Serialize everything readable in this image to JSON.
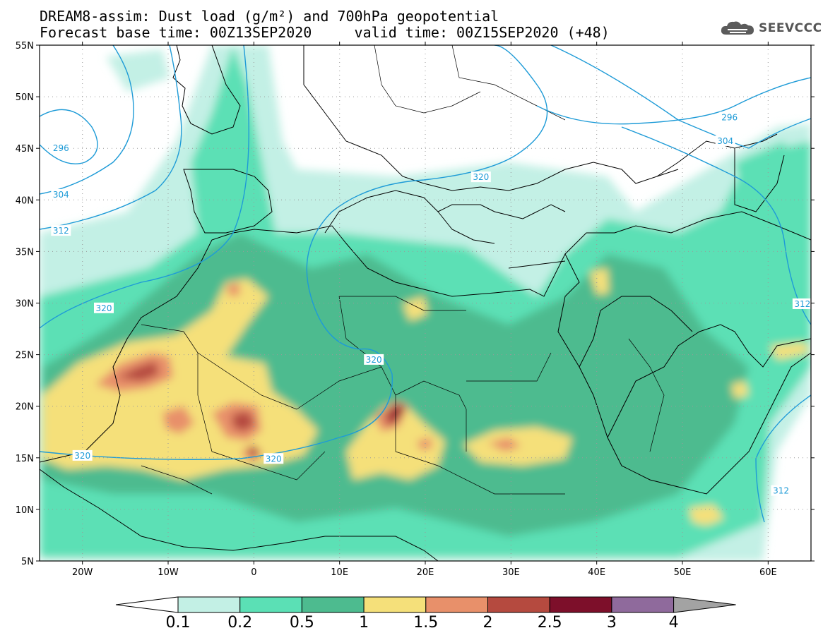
{
  "title": "DREAM8-assim: Dust load (g/m²) and 700hPa geopotential",
  "subtitle_left": "Forecast base time: 00Z13SEP2020",
  "subtitle_right": "valid time: 00Z15SEP2020 (+48)",
  "logo_text": "SEEVCCC",
  "logo_icon": "cloud-icon",
  "map": {
    "lon_range": [
      -25,
      65
    ],
    "lat_range": [
      5,
      55
    ],
    "lat_ticks": [
      "55N",
      "50N",
      "45N",
      "40N",
      "35N",
      "30N",
      "25N",
      "20N",
      "15N",
      "10N",
      "5N"
    ],
    "lon_ticks": [
      "20W",
      "10W",
      "0",
      "10E",
      "20E",
      "30E",
      "40E",
      "50E",
      "60E"
    ],
    "grid": "dotted",
    "contour_color": "#1e9bd7",
    "contour_labels": [
      {
        "text": "296",
        "lon": -22.5,
        "lat": 45.0
      },
      {
        "text": "304",
        "lon": -22.5,
        "lat": 40.5
      },
      {
        "text": "312",
        "lon": -22.5,
        "lat": 37.0
      },
      {
        "text": "320",
        "lon": -17.5,
        "lat": 29.5
      },
      {
        "text": "320",
        "lon": -20.0,
        "lat": 15.2
      },
      {
        "text": "320",
        "lon": 2.3,
        "lat": 14.9
      },
      {
        "text": "320",
        "lon": 14.0,
        "lat": 24.5
      },
      {
        "text": "320",
        "lon": 26.5,
        "lat": 42.2
      },
      {
        "text": "296",
        "lon": 55.5,
        "lat": 48.0
      },
      {
        "text": "304",
        "lon": 55.0,
        "lat": 45.7
      },
      {
        "text": "312",
        "lon": 64.0,
        "lat": 29.9
      },
      {
        "text": "312",
        "lon": 61.5,
        "lat": 11.8
      }
    ]
  },
  "colorbar": {
    "labels": [
      "0.1",
      "0.2",
      "0.5",
      "1",
      "1.5",
      "2",
      "2.5",
      "3",
      "4"
    ],
    "colors": [
      "#c3f0e5",
      "#5be0b5",
      "#4dbb8f",
      "#f5e07a",
      "#e8906a",
      "#b54a3f",
      "#7d0f2a",
      "#8f6a9c"
    ],
    "min_arrow_color": "#ffffff",
    "max_arrow_color": "#a3a3a3"
  }
}
